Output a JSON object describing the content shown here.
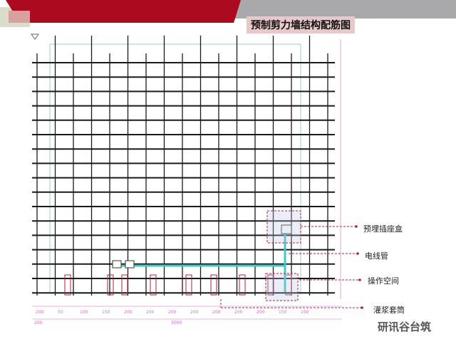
{
  "title": "预制剪力墙结构配筋图",
  "callouts": [
    {
      "label": "预埋插座盒"
    },
    {
      "label": "电线管"
    },
    {
      "label": "操作空间"
    },
    {
      "label": "灌浆套筒"
    }
  ],
  "dimensions": [
    "200",
    "50",
    "100",
    "150",
    "200",
    "200",
    "200",
    "200",
    "200",
    "200",
    "200",
    "150",
    "150"
  ],
  "dimension_total": "3000",
  "dimension_left": "200",
  "watermark": "研讯谷台筑",
  "colors": {
    "header_red": "#ac0a1e",
    "header_gray": "#a9a9ab",
    "title_bg": "#e8c8ca",
    "rebar": "#1a1a1a",
    "dimension": "#d070c0",
    "callout": "#b0203a",
    "conduit": "#40c8c8"
  }
}
